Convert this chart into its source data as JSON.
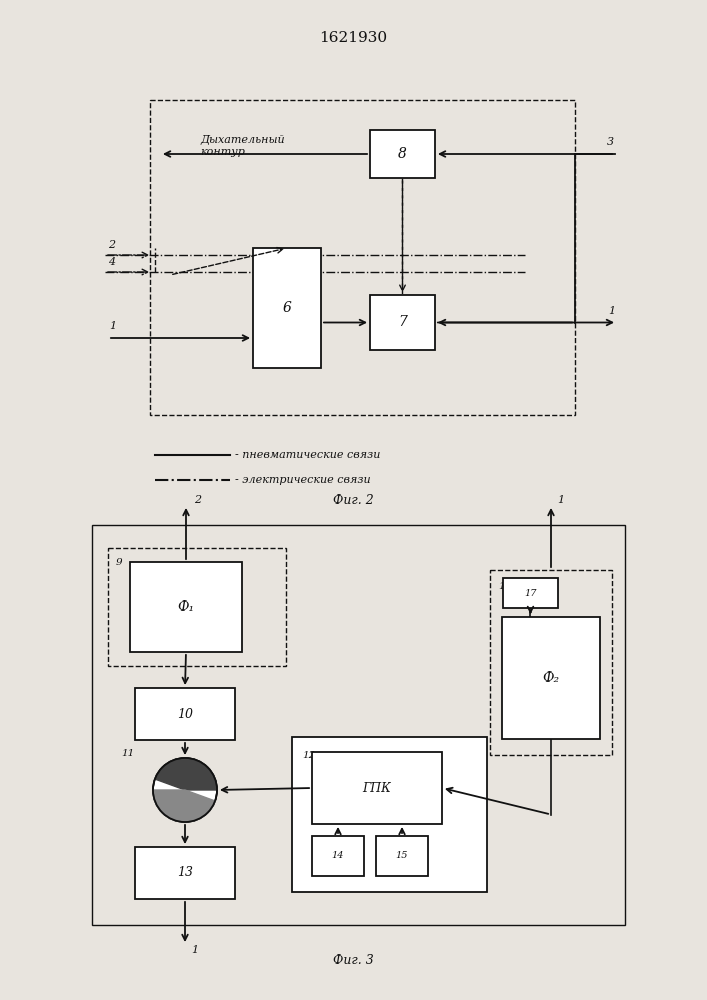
{
  "title": "1621930",
  "fig2_label": "Фиг. 2",
  "fig3_label": "Фиг. 3",
  "legend_solid": "- пневматические связи",
  "legend_dashdot": "- электрические связи",
  "dyhk_label": "Дыхательный\nконтур",
  "bg_color": "#e8e4de",
  "lc": "#111111"
}
